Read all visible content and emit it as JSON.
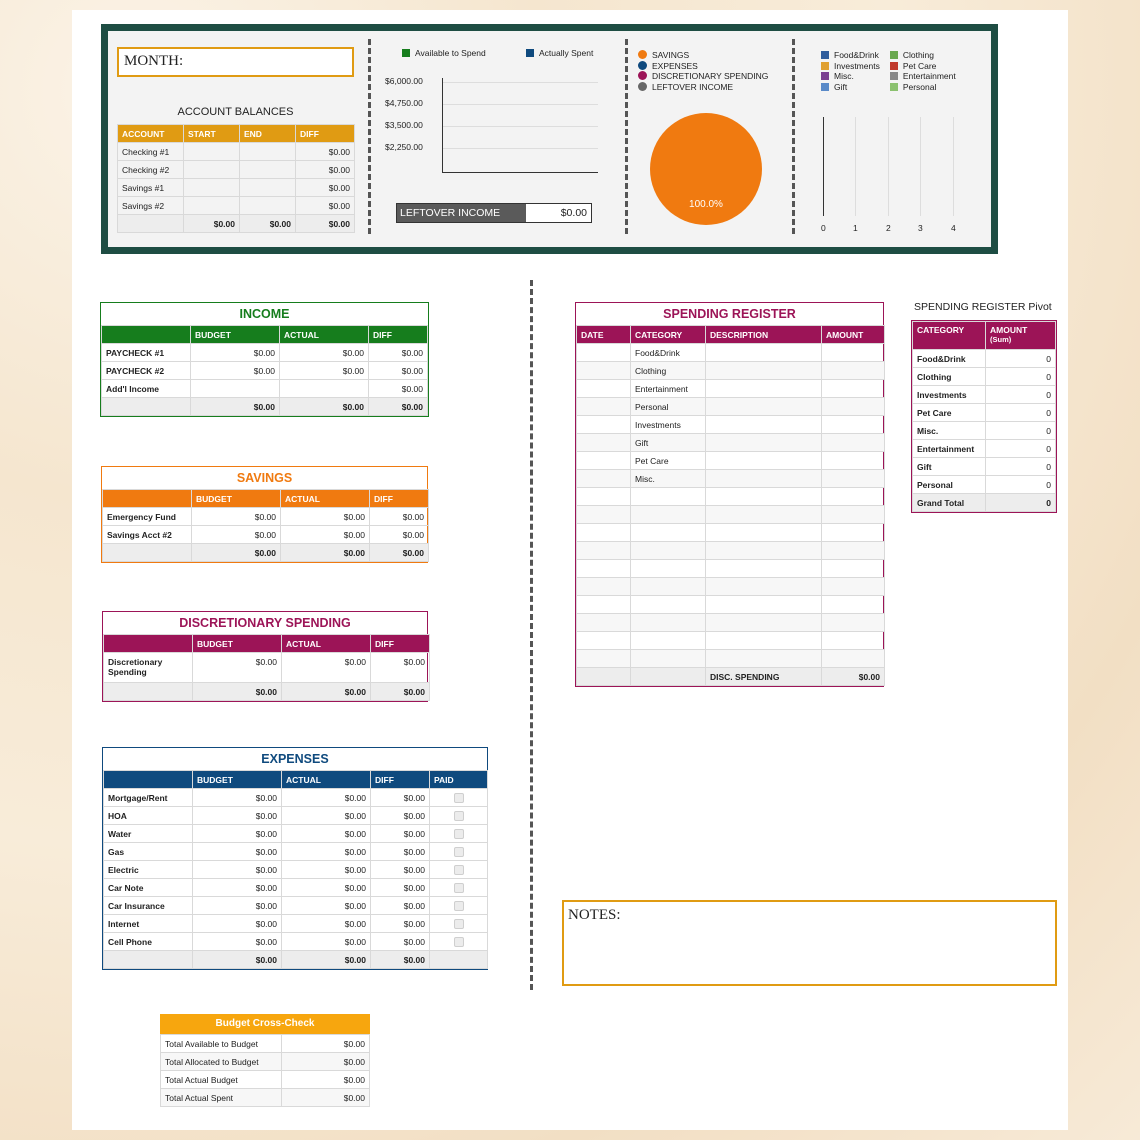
{
  "colors": {
    "dashboard_border": "#1e4d43",
    "income": "#167d1d",
    "savings": "#f07a10",
    "discretionary": "#9c1457",
    "expenses": "#0f4a7e",
    "account": "#e09b13",
    "crosscheck": "#f7a60e",
    "register": "#9c1457"
  },
  "dashboard": {
    "month_label": "MONTH:",
    "balances": {
      "title": "ACCOUNT BALANCES",
      "headers": [
        "ACCOUNT",
        "START",
        "END",
        "DIFF"
      ],
      "rows": [
        [
          "Checking #1",
          "",
          "",
          "$0.00"
        ],
        [
          "Checking #2",
          "",
          "",
          "$0.00"
        ],
        [
          "Savings #1",
          "",
          "",
          "$0.00"
        ],
        [
          "Savings #2",
          "",
          "",
          "$0.00"
        ]
      ],
      "total": [
        "",
        "$0.00",
        "$0.00",
        "$0.00"
      ]
    },
    "bar_chart": {
      "legend": [
        "Available to Spend",
        "Actually Spent"
      ],
      "ticks": [
        "$6,000.00",
        "$4,750.00",
        "$3,500.00",
        "$2,250.00"
      ]
    },
    "leftover": {
      "label": "LEFTOVER INCOME",
      "value": "$0.00"
    },
    "pie": {
      "legend": [
        "SAVINGS",
        "EXPENSES",
        "DISCRETIONARY SPENDING",
        "LEFTOVER INCOME"
      ],
      "legend_colors": [
        "#f07a10",
        "#0f4a7e",
        "#9c1457",
        "#666666"
      ],
      "label": "100.0%"
    },
    "cat_chart": {
      "legend_left": [
        "Food&Drink",
        "Investments",
        "Misc.",
        "Gift"
      ],
      "legend_right": [
        "Clothing",
        "Pet Care",
        "Entertainment",
        "Personal"
      ],
      "colors_left": [
        "#2f5d9c",
        "#e0a030",
        "#7a3f90",
        "#5a8ac8"
      ],
      "colors_right": [
        "#6aa84f",
        "#c0392b",
        "#888888",
        "#8bc16f"
      ],
      "x_ticks": [
        "0",
        "1",
        "2",
        "3",
        "4"
      ]
    }
  },
  "income": {
    "title": "INCOME",
    "headers": [
      "",
      "BUDGET",
      "ACTUAL",
      "DIFF"
    ],
    "rows": [
      [
        "PAYCHECK #1",
        "$0.00",
        "$0.00",
        "$0.00"
      ],
      [
        "PAYCHECK #2",
        "$0.00",
        "$0.00",
        "$0.00"
      ],
      [
        "Add'l Income",
        "",
        "",
        "$0.00"
      ]
    ],
    "total": [
      "",
      "$0.00",
      "$0.00",
      "$0.00"
    ]
  },
  "savings": {
    "title": "SAVINGS",
    "headers": [
      "",
      "BUDGET",
      "ACTUAL",
      "DIFF"
    ],
    "rows": [
      [
        "Emergency Fund",
        "$0.00",
        "$0.00",
        "$0.00"
      ],
      [
        "Savings Acct #2",
        "$0.00",
        "$0.00",
        "$0.00"
      ]
    ],
    "total": [
      "",
      "$0.00",
      "$0.00",
      "$0.00"
    ]
  },
  "discretionary": {
    "title": "DISCRETIONARY SPENDING",
    "headers": [
      "",
      "BUDGET",
      "ACTUAL",
      "DIFF"
    ],
    "row": [
      "Discretionary",
      "Spending",
      "$0.00",
      "$0.00",
      "$0.00"
    ],
    "total": [
      "",
      "$0.00",
      "$0.00",
      "$0.00"
    ]
  },
  "expenses": {
    "title": "EXPENSES",
    "headers": [
      "",
      "BUDGET",
      "ACTUAL",
      "DIFF",
      "PAID"
    ],
    "rows": [
      [
        "Mortgage/Rent",
        "$0.00",
        "$0.00",
        "$0.00"
      ],
      [
        "HOA",
        "$0.00",
        "$0.00",
        "$0.00"
      ],
      [
        "Water",
        "$0.00",
        "$0.00",
        "$0.00"
      ],
      [
        "Gas",
        "$0.00",
        "$0.00",
        "$0.00"
      ],
      [
        "Electric",
        "$0.00",
        "$0.00",
        "$0.00"
      ],
      [
        "Car Note",
        "$0.00",
        "$0.00",
        "$0.00"
      ],
      [
        "Car Insurance",
        "$0.00",
        "$0.00",
        "$0.00"
      ],
      [
        "Internet",
        "$0.00",
        "$0.00",
        "$0.00"
      ],
      [
        "Cell Phone",
        "$0.00",
        "$0.00",
        "$0.00"
      ]
    ],
    "total": [
      "",
      "$0.00",
      "$0.00",
      "$0.00",
      ""
    ]
  },
  "crosscheck": {
    "title": "Budget Cross-Check",
    "rows": [
      [
        "Total Available to Budget",
        "$0.00"
      ],
      [
        "Total Allocated to Budget",
        "$0.00"
      ],
      [
        "Total Actual Budget",
        "$0.00"
      ],
      [
        "Total Actual Spent",
        "$0.00"
      ]
    ]
  },
  "register": {
    "title": "SPENDING REGISTER",
    "headers": [
      "DATE",
      "CATEGORY",
      "DESCRIPTION",
      "AMOUNT"
    ],
    "categories": [
      "Food&Drink",
      "Clothing",
      "Entertainment",
      "Personal",
      "Investments",
      "Gift",
      "Pet Care",
      "Misc."
    ],
    "footer_label": "DISC. SPENDING",
    "footer_value": "$0.00"
  },
  "pivot": {
    "title": "SPENDING REGISTER Pivot",
    "headers": [
      "CATEGORY",
      "AMOUNT"
    ],
    "header_sub": "(Sum)",
    "rows": [
      [
        "Food&Drink",
        "0"
      ],
      [
        "Clothing",
        "0"
      ],
      [
        "Investments",
        "0"
      ],
      [
        "Pet Care",
        "0"
      ],
      [
        "Misc.",
        "0"
      ],
      [
        "Entertainment",
        "0"
      ],
      [
        "Gift",
        "0"
      ],
      [
        "Personal",
        "0"
      ]
    ],
    "total": [
      "Grand Total",
      "0"
    ]
  },
  "notes": {
    "label": "NOTES:"
  }
}
